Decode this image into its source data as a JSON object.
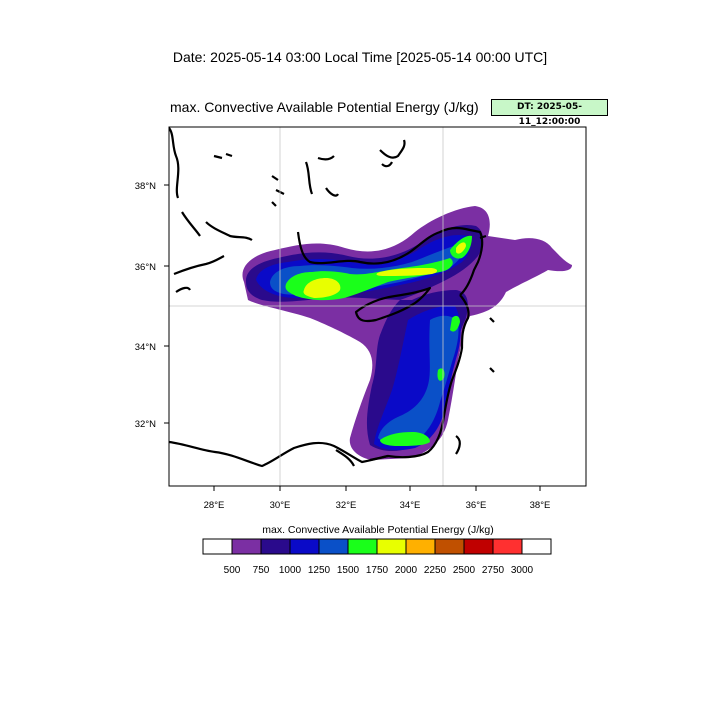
{
  "header": {
    "date_line": "Date: 2025-05-14  03:00 Local Time [2025-05-14  00:00 UTC]",
    "map_title": "max. Convective Available Potential Energy   (J/kg)",
    "dt_badge": "DT: 2025-05-11_12:00:00",
    "dt_badge_color": "#c8f7c8"
  },
  "map": {
    "lon_ticks": [
      "28°E",
      "30°E",
      "32°E",
      "34°E",
      "36°E",
      "38°E"
    ],
    "lat_ticks": [
      "38°N",
      "36°N",
      "34°N",
      "32°N"
    ],
    "grid_lines": [
      "30°E",
      "35°E",
      "35°N"
    ]
  },
  "colorbar": {
    "title": "max. Convective Available Potential Energy  (J/kg)",
    "units": "J/kg",
    "levels": [
      "500",
      "750",
      "1000",
      "1250",
      "1500",
      "1750",
      "2000",
      "2250",
      "2500",
      "2750",
      "3000"
    ],
    "colors": [
      "#ffffff",
      "#7b2fa3",
      "#2a0a8c",
      "#0a0ac8",
      "#0a50c8",
      "#1aff1a",
      "#e8ff00",
      "#ffb000",
      "#c05000",
      "#c00000",
      "#ff3030",
      "#ffffff"
    ]
  }
}
